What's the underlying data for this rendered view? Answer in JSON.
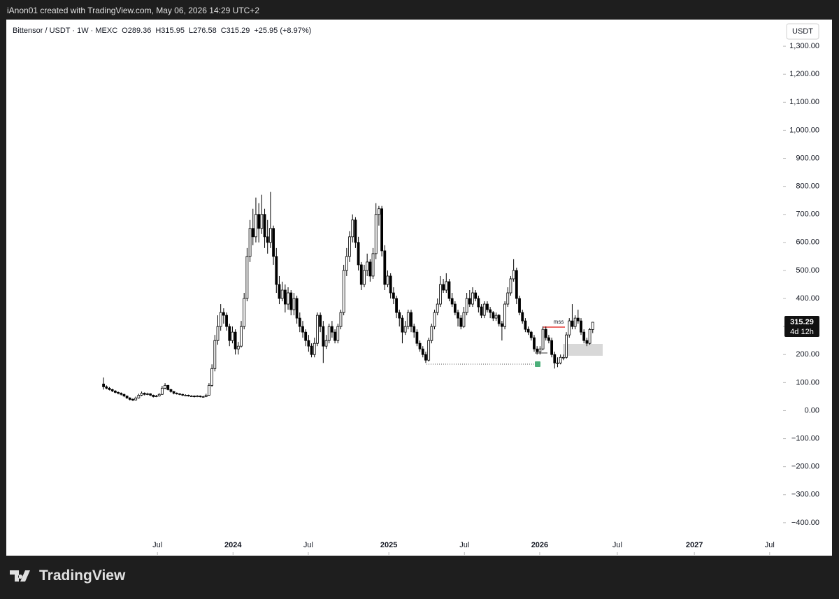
{
  "header": {
    "credit": "iAnon01 created with TradingView.com, May 06, 2026 14:29 UTC+2"
  },
  "footer": {
    "brand": "TradingView"
  },
  "chart_data": {
    "type": "candlestick",
    "symbol": "Bittensor / USDT · 1W · MEXC",
    "open_label": "O289.36",
    "high_label": "H315.95",
    "low_label": "L276.58",
    "close_label": "C315.29",
    "change_label": "+25.95 (+8.97%)",
    "currency": "USDT",
    "price_label": "315.29",
    "countdown": "4d 12h",
    "annotation": "mss",
    "up_color": "#ffffff",
    "down_color": "#000000",
    "wick_color": "#000000",
    "xlim": [
      -33.2,
      231.5
    ],
    "xticks": [
      {
        "value": 18.4,
        "label": "Jul"
      },
      {
        "value": 44.2,
        "label": "2024"
      },
      {
        "value": 69.9,
        "label": "Jul"
      },
      {
        "value": 97.4,
        "label": "2025"
      },
      {
        "value": 123.2,
        "label": "Jul"
      },
      {
        "value": 148.9,
        "label": "2026"
      },
      {
        "value": 175.4,
        "label": "Jul"
      },
      {
        "value": 201.7,
        "label": "2027"
      },
      {
        "value": 227.4,
        "label": "Jul"
      }
    ],
    "ylim": [
      -517.5,
      1395
    ],
    "yticks": [
      {
        "value": 1300,
        "label": "1,300.00"
      },
      {
        "value": 1200,
        "label": "1,200.00"
      },
      {
        "value": 1100,
        "label": "1,100.00"
      },
      {
        "value": 1000,
        "label": "1,000.00"
      },
      {
        "value": 900,
        "label": "900.00"
      },
      {
        "value": 800,
        "label": "800.00"
      },
      {
        "value": 700,
        "label": "700.00"
      },
      {
        "value": 600,
        "label": "600.00"
      },
      {
        "value": 500,
        "label": "500.00"
      },
      {
        "value": 400,
        "label": "400.00"
      },
      {
        "value": 300,
        "label": "300.00"
      },
      {
        "value": 200,
        "label": "200.00"
      },
      {
        "value": 100,
        "label": "100.00"
      },
      {
        "value": 0,
        "label": "0.00"
      },
      {
        "value": -100,
        "label": "−100.00"
      },
      {
        "value": -200,
        "label": "−200.00"
      },
      {
        "value": -300,
        "label": "−300.00"
      },
      {
        "value": -400,
        "label": "−400.00"
      }
    ],
    "ohlc": [
      [
        95,
        118,
        75,
        85
      ],
      [
        85,
        90,
        76,
        80
      ],
      [
        80,
        84,
        72,
        75
      ],
      [
        75,
        78,
        66,
        70
      ],
      [
        70,
        73,
        62,
        65
      ],
      [
        65,
        68,
        58,
        62
      ],
      [
        62,
        65,
        54,
        58
      ],
      [
        58,
        60,
        48,
        52
      ],
      [
        52,
        54,
        42,
        45
      ],
      [
        45,
        48,
        36,
        40
      ],
      [
        40,
        44,
        34,
        38
      ],
      [
        38,
        50,
        36,
        45
      ],
      [
        45,
        60,
        43,
        55
      ],
      [
        55,
        68,
        52,
        62
      ],
      [
        62,
        65,
        54,
        58
      ],
      [
        58,
        64,
        55,
        60
      ],
      [
        60,
        62,
        52,
        55
      ],
      [
        55,
        57,
        47,
        50
      ],
      [
        50,
        56,
        48,
        52
      ],
      [
        52,
        62,
        50,
        58
      ],
      [
        58,
        88,
        56,
        80
      ],
      [
        80,
        98,
        76,
        90
      ],
      [
        90,
        92,
        72,
        75
      ],
      [
        75,
        78,
        64,
        68
      ],
      [
        68,
        70,
        58,
        62
      ],
      [
        62,
        65,
        57,
        60
      ],
      [
        60,
        62,
        55,
        58
      ],
      [
        58,
        60,
        52,
        55
      ],
      [
        55,
        58,
        52,
        55
      ],
      [
        55,
        57,
        50,
        52
      ],
      [
        52,
        55,
        49,
        52
      ],
      [
        52,
        54,
        47,
        50
      ],
      [
        50,
        55,
        48,
        52
      ],
      [
        52,
        54,
        47,
        50
      ],
      [
        50,
        53,
        47,
        50
      ],
      [
        50,
        60,
        48,
        55
      ],
      [
        55,
        98,
        53,
        90
      ],
      [
        90,
        165,
        85,
        150
      ],
      [
        150,
        270,
        140,
        250
      ],
      [
        250,
        340,
        235,
        300
      ],
      [
        300,
        380,
        285,
        350
      ],
      [
        350,
        365,
        310,
        340
      ],
      [
        340,
        350,
        285,
        300
      ],
      [
        300,
        310,
        230,
        250
      ],
      [
        250,
        300,
        240,
        280
      ],
      [
        280,
        290,
        200,
        220
      ],
      [
        220,
        245,
        200,
        230
      ],
      [
        230,
        320,
        225,
        300
      ],
      [
        300,
        420,
        290,
        400
      ],
      [
        400,
        580,
        390,
        550
      ],
      [
        550,
        680,
        530,
        650
      ],
      [
        650,
        720,
        590,
        620
      ],
      [
        620,
        760,
        600,
        700
      ],
      [
        700,
        740,
        600,
        650
      ],
      [
        650,
        770,
        630,
        700
      ],
      [
        700,
        720,
        580,
        620
      ],
      [
        620,
        680,
        560,
        600
      ],
      [
        600,
        780,
        580,
        650
      ],
      [
        650,
        660,
        520,
        550
      ],
      [
        550,
        580,
        420,
        450
      ],
      [
        450,
        480,
        380,
        400
      ],
      [
        400,
        460,
        390,
        430
      ],
      [
        430,
        450,
        350,
        380
      ],
      [
        380,
        440,
        360,
        420
      ],
      [
        420,
        430,
        340,
        360
      ],
      [
        360,
        420,
        340,
        400
      ],
      [
        400,
        410,
        310,
        330
      ],
      [
        330,
        350,
        280,
        300
      ],
      [
        300,
        320,
        260,
        280
      ],
      [
        280,
        290,
        230,
        250
      ],
      [
        250,
        270,
        210,
        230
      ],
      [
        230,
        240,
        190,
        200
      ],
      [
        200,
        260,
        190,
        240
      ],
      [
        240,
        350,
        230,
        340
      ],
      [
        340,
        350,
        280,
        300
      ],
      [
        300,
        320,
        170,
        230
      ],
      [
        230,
        270,
        220,
        250
      ],
      [
        250,
        310,
        240,
        300
      ],
      [
        300,
        320,
        260,
        280
      ],
      [
        280,
        290,
        240,
        250
      ],
      [
        250,
        310,
        240,
        300
      ],
      [
        300,
        360,
        290,
        350
      ],
      [
        350,
        520,
        340,
        500
      ],
      [
        500,
        580,
        480,
        550
      ],
      [
        550,
        640,
        530,
        620
      ],
      [
        620,
        700,
        600,
        680
      ],
      [
        680,
        690,
        580,
        600
      ],
      [
        600,
        620,
        500,
        520
      ],
      [
        520,
        530,
        430,
        450
      ],
      [
        450,
        520,
        440,
        500
      ],
      [
        500,
        560,
        480,
        530
      ],
      [
        530,
        540,
        460,
        480
      ],
      [
        480,
        580,
        470,
        560
      ],
      [
        560,
        740,
        540,
        700
      ],
      [
        700,
        730,
        660,
        720
      ],
      [
        720,
        730,
        550,
        570
      ],
      [
        570,
        590,
        430,
        450
      ],
      [
        450,
        500,
        440,
        480
      ],
      [
        480,
        490,
        400,
        420
      ],
      [
        420,
        440,
        380,
        400
      ],
      [
        400,
        410,
        330,
        350
      ],
      [
        350,
        360,
        300,
        330
      ],
      [
        330,
        340,
        240,
        280
      ],
      [
        280,
        320,
        270,
        300
      ],
      [
        300,
        360,
        290,
        350
      ],
      [
        350,
        360,
        280,
        300
      ],
      [
        300,
        310,
        260,
        280
      ],
      [
        280,
        290,
        230,
        240
      ],
      [
        240,
        250,
        210,
        220
      ],
      [
        220,
        230,
        190,
        200
      ],
      [
        200,
        210,
        170,
        180
      ],
      [
        180,
        260,
        175,
        250
      ],
      [
        250,
        310,
        240,
        300
      ],
      [
        300,
        360,
        290,
        350
      ],
      [
        350,
        400,
        340,
        380
      ],
      [
        380,
        480,
        370,
        450
      ],
      [
        450,
        470,
        420,
        430
      ],
      [
        430,
        490,
        420,
        460
      ],
      [
        460,
        470,
        390,
        400
      ],
      [
        400,
        420,
        370,
        380
      ],
      [
        380,
        390,
        340,
        350
      ],
      [
        350,
        360,
        300,
        330
      ],
      [
        330,
        340,
        290,
        300
      ],
      [
        300,
        370,
        295,
        350
      ],
      [
        350,
        420,
        340,
        400
      ],
      [
        400,
        430,
        370,
        380
      ],
      [
        380,
        440,
        370,
        420
      ],
      [
        420,
        430,
        390,
        400
      ],
      [
        400,
        410,
        350,
        370
      ],
      [
        370,
        380,
        330,
        340
      ],
      [
        340,
        390,
        330,
        380
      ],
      [
        380,
        390,
        350,
        360
      ],
      [
        360,
        370,
        330,
        350
      ],
      [
        350,
        355,
        320,
        330
      ],
      [
        330,
        350,
        320,
        340
      ],
      [
        340,
        345,
        300,
        310
      ],
      [
        310,
        320,
        250,
        300
      ],
      [
        300,
        390,
        290,
        380
      ],
      [
        380,
        440,
        370,
        420
      ],
      [
        420,
        480,
        410,
        470
      ],
      [
        470,
        540,
        460,
        500
      ],
      [
        500,
        510,
        380,
        400
      ],
      [
        400,
        410,
        340,
        350
      ],
      [
        350,
        360,
        310,
        320
      ],
      [
        320,
        330,
        280,
        290
      ],
      [
        290,
        300,
        270,
        280
      ],
      [
        280,
        285,
        250,
        260
      ],
      [
        260,
        270,
        210,
        220
      ],
      [
        220,
        230,
        200,
        210
      ],
      [
        210,
        230,
        200,
        220
      ],
      [
        220,
        300,
        215,
        290
      ],
      [
        290,
        300,
        250,
        260
      ],
      [
        260,
        270,
        240,
        250
      ],
      [
        250,
        260,
        190,
        200
      ],
      [
        200,
        210,
        150,
        170
      ],
      [
        170,
        190,
        155,
        170
      ],
      [
        170,
        200,
        165,
        190
      ],
      [
        190,
        200,
        180,
        190
      ],
      [
        190,
        280,
        185,
        270
      ],
      [
        270,
        330,
        260,
        320
      ],
      [
        320,
        380,
        290,
        300
      ],
      [
        300,
        340,
        290,
        330
      ],
      [
        330,
        360,
        310,
        320
      ],
      [
        320,
        330,
        270,
        280
      ],
      [
        280,
        290,
        240,
        250
      ],
      [
        250,
        260,
        230,
        240
      ],
      [
        240,
        295,
        235,
        289.36
      ],
      [
        289.36,
        315.95,
        276.58,
        315.29
      ]
    ]
  }
}
